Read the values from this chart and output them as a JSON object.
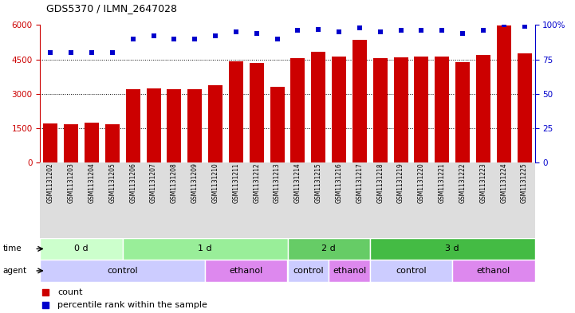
{
  "title": "GDS5370 / ILMN_2647028",
  "samples": [
    "GSM1131202",
    "GSM1131203",
    "GSM1131204",
    "GSM1131205",
    "GSM1131206",
    "GSM1131207",
    "GSM1131208",
    "GSM1131209",
    "GSM1131210",
    "GSM1131211",
    "GSM1131212",
    "GSM1131213",
    "GSM1131214",
    "GSM1131215",
    "GSM1131216",
    "GSM1131217",
    "GSM1131218",
    "GSM1131219",
    "GSM1131220",
    "GSM1131221",
    "GSM1131222",
    "GSM1131223",
    "GSM1131224",
    "GSM1131225"
  ],
  "counts": [
    1700,
    1680,
    1750,
    1680,
    3200,
    3250,
    3200,
    3200,
    3380,
    4420,
    4360,
    3320,
    4570,
    4830,
    4610,
    5350,
    4560,
    4600,
    4620,
    4620,
    4380,
    4680,
    5980,
    4750
  ],
  "percentile_ranks": [
    80,
    80,
    80,
    80,
    90,
    92,
    90,
    90,
    92,
    95,
    94,
    90,
    96,
    97,
    95,
    98,
    95,
    96,
    96,
    96,
    94,
    96,
    100,
    99
  ],
  "ylim_left": [
    0,
    6000
  ],
  "ylim_right": [
    0,
    100
  ],
  "yticks_left": [
    0,
    1500,
    3000,
    4500,
    6000
  ],
  "yticks_right": [
    0,
    25,
    50,
    75,
    100
  ],
  "bar_color": "#cc0000",
  "dot_color": "#0000cc",
  "time_groups": [
    {
      "label": "0 d",
      "start": 0,
      "end": 4,
      "color": "#ccffcc"
    },
    {
      "label": "1 d",
      "start": 4,
      "end": 12,
      "color": "#99ee99"
    },
    {
      "label": "2 d",
      "start": 12,
      "end": 16,
      "color": "#66cc66"
    },
    {
      "label": "3 d",
      "start": 16,
      "end": 24,
      "color": "#44bb44"
    }
  ],
  "agent_groups": [
    {
      "label": "control",
      "start": 0,
      "end": 8,
      "color": "#ddddff"
    },
    {
      "label": "ethanol",
      "start": 8,
      "end": 12,
      "color": "#ee88ee"
    },
    {
      "label": "control",
      "start": 12,
      "end": 14,
      "color": "#ddddff"
    },
    {
      "label": "ethanol",
      "start": 14,
      "end": 16,
      "color": "#ee88ee"
    },
    {
      "label": "control",
      "start": 16,
      "end": 20,
      "color": "#ddddff"
    },
    {
      "label": "ethanol",
      "start": 20,
      "end": 24,
      "color": "#ee88ee"
    }
  ]
}
